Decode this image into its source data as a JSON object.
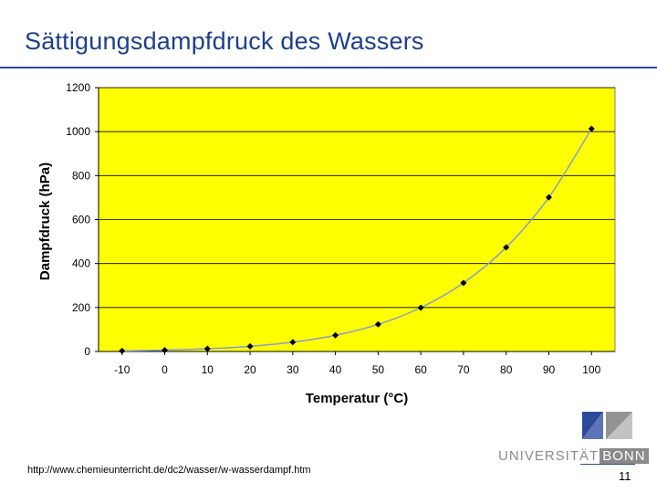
{
  "slide": {
    "title": "Sättigungsdampfdruck des Wassers",
    "source": "http://www.chemieunterricht.de/dc2/wasser/w-wasserdampf.htm",
    "page_number": "11"
  },
  "logo": {
    "text_main": "UNIVERSITÄT",
    "text_accent": "BONN",
    "colors": {
      "blue": "#2c4a9a",
      "gray": "#8a8a8a"
    }
  },
  "colors": {
    "plot_background": "#ffff00",
    "line": "#8a9bd0",
    "marker": "#000000",
    "title": "#1f3f8a",
    "gridline": "#000000"
  },
  "chart_data": {
    "type": "line",
    "title": "",
    "xlabel": "Temperatur (°C)",
    "ylabel": "Dampfdruck (hPa)",
    "x": [
      -10,
      0,
      10,
      20,
      30,
      40,
      50,
      60,
      70,
      80,
      90,
      100
    ],
    "xticks": [
      "-10",
      "0",
      "10",
      "20",
      "30",
      "40",
      "50",
      "60",
      "70",
      "80",
      "90",
      "100"
    ],
    "ylim": [
      0,
      1200
    ],
    "yticks": [
      "0",
      "200",
      "400",
      "600",
      "800",
      "1000",
      "1200"
    ],
    "grid": true,
    "series": [
      {
        "values": [
          2.6,
          6.1,
          12.3,
          23.4,
          42.4,
          73.8,
          123.4,
          199.3,
          311.8,
          473.6,
          701.1,
          1013.3
        ]
      }
    ]
  }
}
